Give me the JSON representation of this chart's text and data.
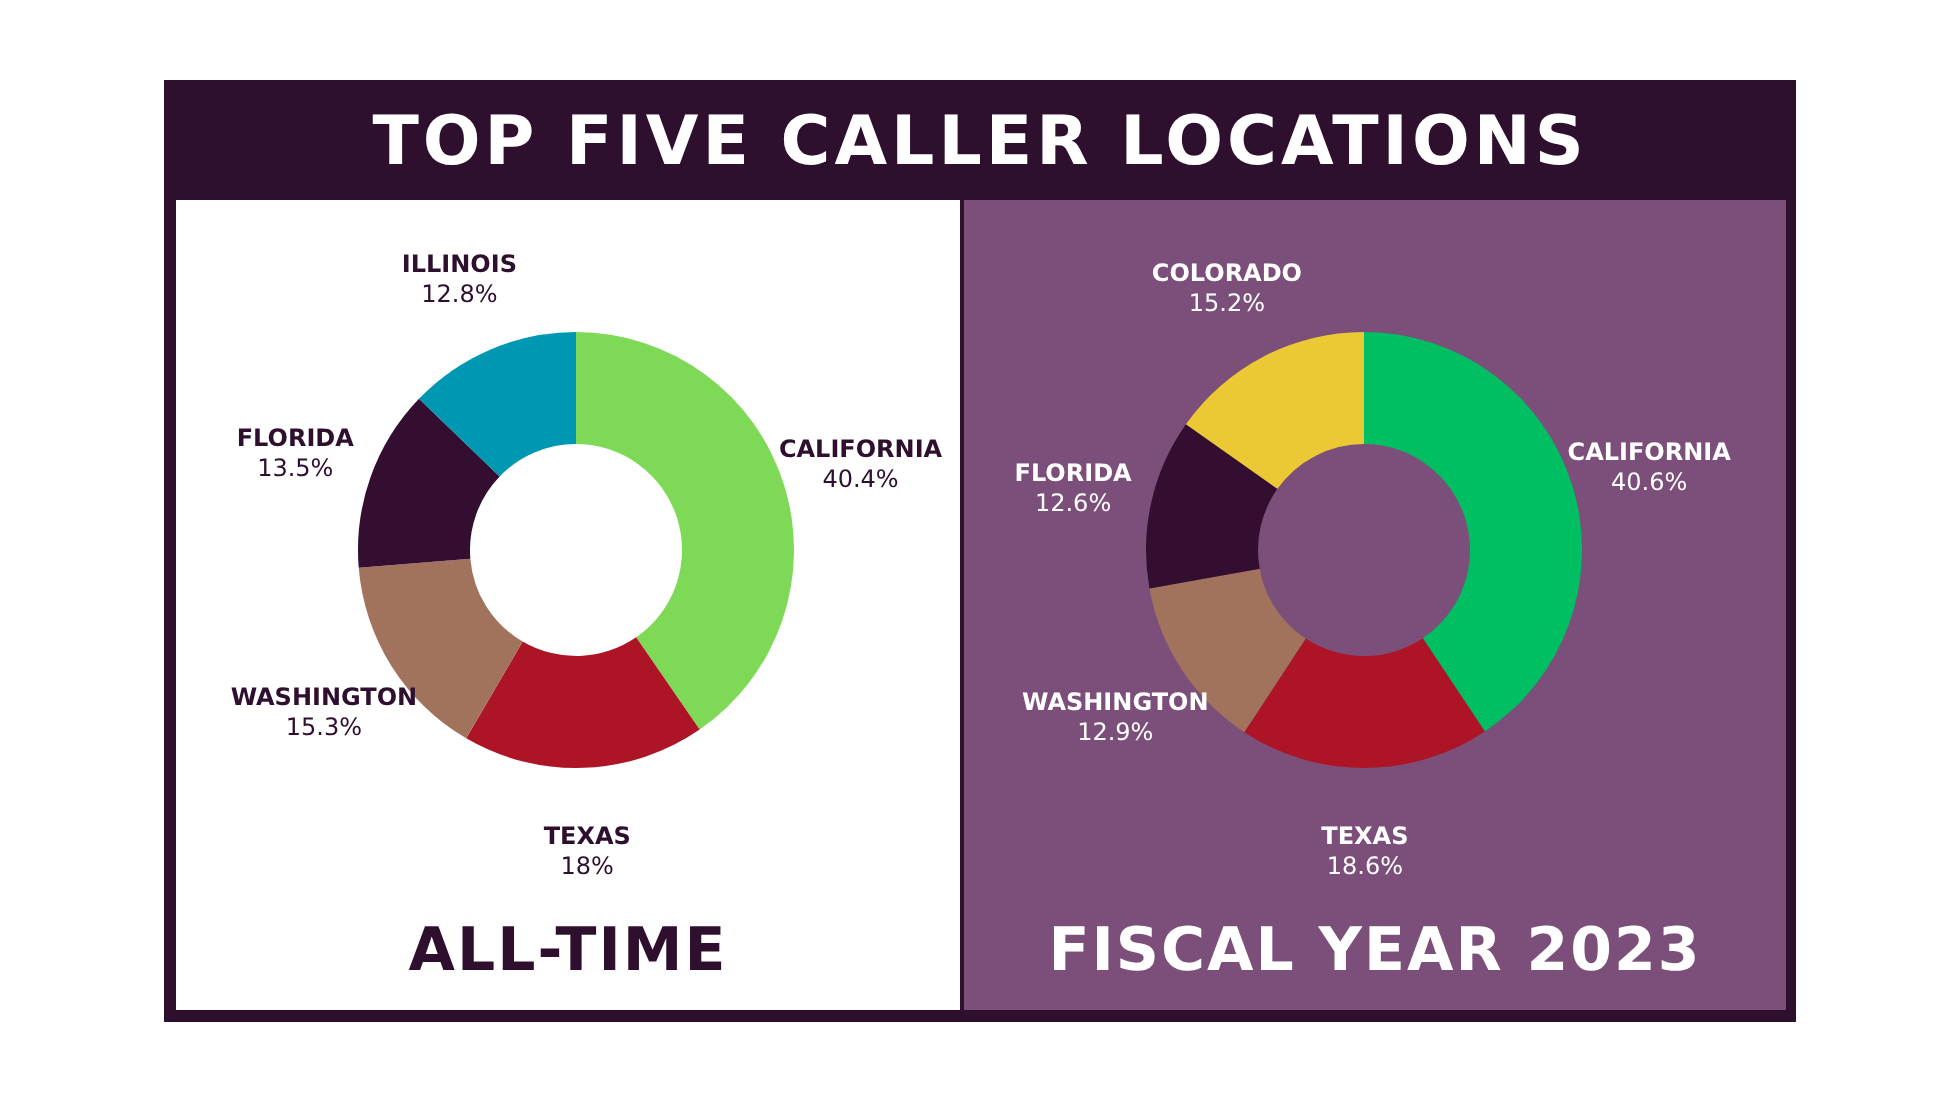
{
  "chart_data": [
    {
      "type": "donut",
      "title": "TOP FIVE CALLER LOCATIONS",
      "subtitle": "ALL-TIME",
      "categories": [
        "CALIFORNIA",
        "TEXAS",
        "WASHINGTON",
        "FLORIDA",
        "ILLINOIS"
      ],
      "values": [
        40.4,
        18,
        15.3,
        13.5,
        12.8
      ],
      "value_labels": [
        "40.4%",
        "18%",
        "15.3%",
        "13.5%",
        "12.8%"
      ],
      "colors": [
        "#7ed957",
        "#ad1527",
        "#a1735c",
        "#330e30",
        "#0097b2"
      ]
    },
    {
      "type": "donut",
      "subtitle": "FISCAL YEAR 2023",
      "categories": [
        "CALIFORNIA",
        "TEXAS",
        "WASHINGTON",
        "FLORIDA",
        "COLORADO"
      ],
      "values": [
        40.6,
        18.6,
        12.9,
        12.6,
        15.2
      ],
      "value_labels": [
        "40.6%",
        "18.6%",
        "12.9%",
        "12.6%",
        "15.2%"
      ],
      "colors": [
        "#00bf63",
        "#ad1527",
        "#a1735c",
        "#330e30",
        "#ebc934"
      ]
    }
  ]
}
